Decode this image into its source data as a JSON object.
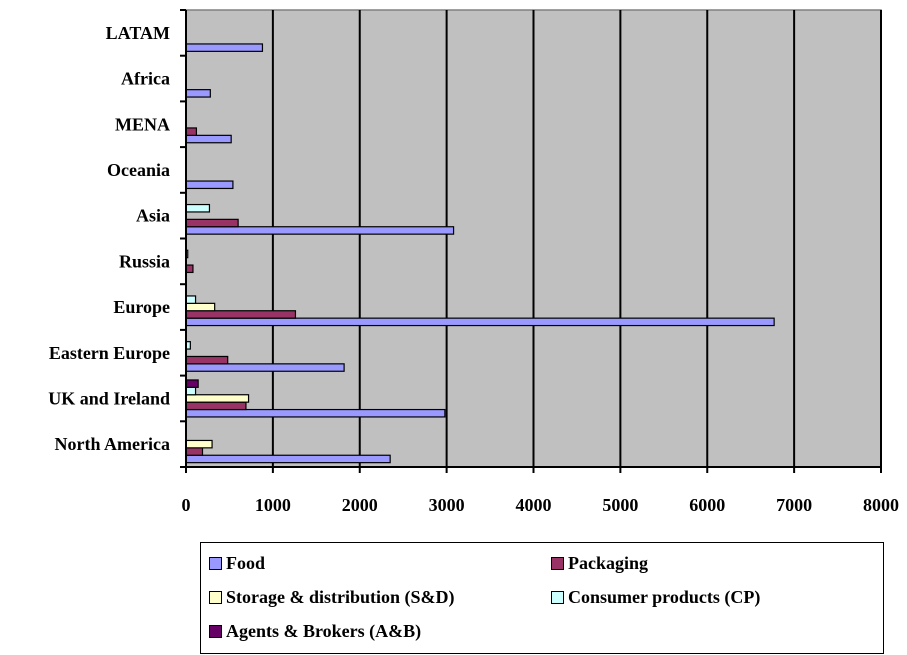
{
  "chart_data": {
    "type": "bar",
    "orientation": "horizontal",
    "title": "",
    "xlabel": "",
    "ylabel": "",
    "xlim": [
      0,
      8000
    ],
    "x_ticks": [
      0,
      1000,
      2000,
      3000,
      4000,
      5000,
      6000,
      7000,
      8000
    ],
    "grid": "vertical",
    "legend_position": "bottom",
    "plot_background": "#c0c0c0",
    "categories": [
      "North America",
      "UK and Ireland",
      "Eastern Europe",
      "Europe",
      "Russia",
      "Asia",
      "Oceania",
      "MENA",
      "Africa",
      "LATAM"
    ],
    "series": [
      {
        "name": "Food",
        "color": "#9999ff",
        "values": [
          2350,
          2980,
          1820,
          6770,
          0,
          3080,
          540,
          520,
          280,
          880
        ]
      },
      {
        "name": "Packaging",
        "color": "#993366",
        "values": [
          190,
          690,
          480,
          1260,
          80,
          600,
          0,
          120,
          0,
          0
        ]
      },
      {
        "name": "Storage & distribution (S&D)",
        "color": "#ffffcc",
        "values": [
          300,
          720,
          0,
          330,
          0,
          0,
          0,
          0,
          0,
          0
        ]
      },
      {
        "name": "Consumer products (CP)",
        "color": "#ccffff",
        "values": [
          0,
          110,
          50,
          110,
          20,
          270,
          0,
          0,
          0,
          0
        ]
      },
      {
        "name": "Agents & Brokers (A&B)",
        "color": "#660066",
        "values": [
          0,
          140,
          0,
          0,
          0,
          0,
          0,
          0,
          0,
          0
        ]
      }
    ]
  }
}
